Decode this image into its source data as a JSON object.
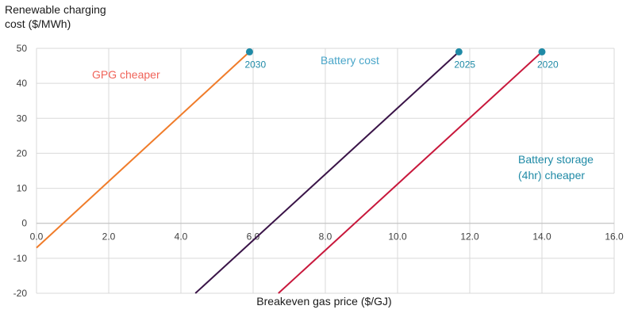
{
  "chart_data": {
    "type": "line",
    "title": "",
    "ylabel": "Renewable charging cost ($/MWh)",
    "xlabel": "Breakeven gas price ($/GJ)",
    "xlim": [
      0,
      16
    ],
    "ylim": [
      -20,
      50
    ],
    "xticks": [
      "0.0",
      "2.0",
      "4.0",
      "6.0",
      "8.0",
      "10.0",
      "12.0",
      "14.0",
      "16.0"
    ],
    "yticks": [
      "50",
      "40",
      "30",
      "20",
      "10",
      "0",
      "-10",
      "-20"
    ],
    "grid": true,
    "series": [
      {
        "name": "2030",
        "color": "#f07c2a",
        "x": [
          0.0,
          5.9
        ],
        "y": [
          -7,
          49
        ]
      },
      {
        "name": "2025",
        "color": "#3a1448",
        "x": [
          4.4,
          11.7
        ],
        "y": [
          -20,
          49
        ]
      },
      {
        "name": "2020",
        "color": "#c8183c",
        "x": [
          6.7,
          14.0
        ],
        "y": [
          -20,
          49
        ]
      }
    ],
    "point_color": "#1f8aa6",
    "annotations": {
      "gpg": {
        "text": "GPG cheaper",
        "color": "#f0645a"
      },
      "battery_cost": {
        "text": "Battery cost",
        "color": "#4aa6c9"
      },
      "storage_line1": {
        "text": "Battery storage",
        "color": "#1f8aa6"
      },
      "storage_line2": {
        "text": "(4hr) cheaper",
        "color": "#1f8aa6"
      }
    }
  }
}
